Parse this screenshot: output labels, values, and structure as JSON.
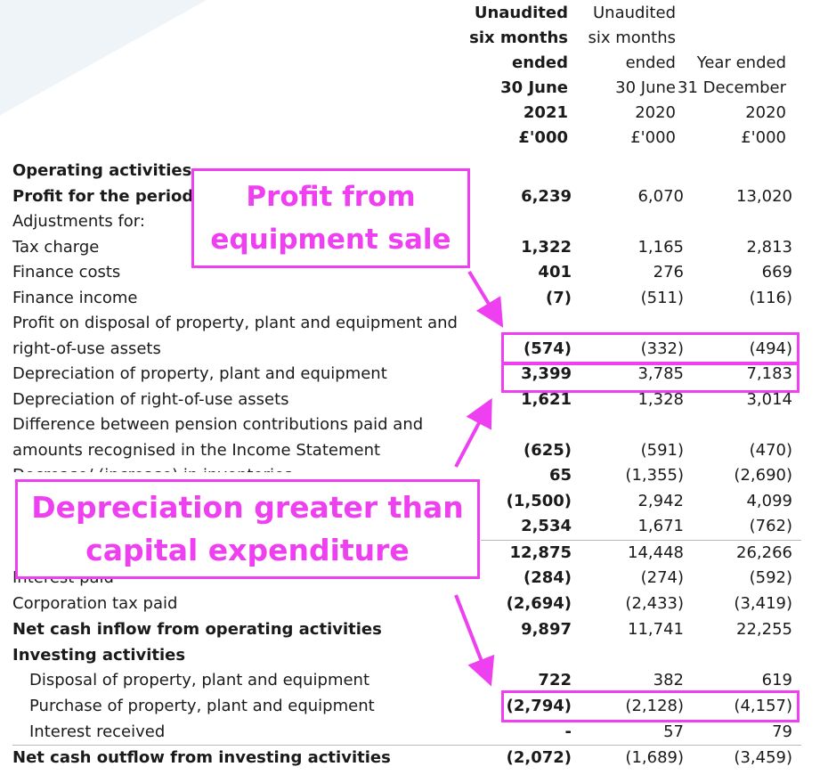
{
  "header": {
    "col1": [
      "Unaudited",
      "six months",
      "ended",
      "30 June",
      "2021",
      "£'000"
    ],
    "col2": [
      "Unaudited",
      "six months",
      "ended",
      "30 June",
      "2020",
      "£'000"
    ],
    "col3": [
      "Year ended",
      "31 December",
      "2020",
      "£'000"
    ]
  },
  "rows": [
    {
      "label": "Operating activities",
      "c1": "",
      "c2": "",
      "c3": ""
    },
    {
      "label": "Profit for the period",
      "c1": "6,239",
      "c2": "6,070",
      "c3": "13,020"
    },
    {
      "label": "Adjustments for:",
      "c1": "",
      "c2": "",
      "c3": ""
    },
    {
      "label": "Tax charge",
      "c1": "1,322",
      "c2": "1,165",
      "c3": "2,813"
    },
    {
      "label": "Finance costs",
      "c1": "401",
      "c2": "276",
      "c3": "669"
    },
    {
      "label": "Finance income",
      "c1": "(7)",
      "c2": "(511)",
      "c3": "(116)"
    },
    {
      "label": "Profit on disposal of property, plant and equipment and",
      "c1": "",
      "c2": "",
      "c3": ""
    },
    {
      "label": "right-of-use assets",
      "c1": "(574)",
      "c2": "(332)",
      "c3": "(494)"
    },
    {
      "label": "Depreciation of property, plant and equipment",
      "c1": "3,399",
      "c2": "3,785",
      "c3": "7,183"
    },
    {
      "label": "Depreciation of right-of-use assets",
      "c1": "1,621",
      "c2": "1,328",
      "c3": "3,014"
    },
    {
      "label": "Difference between pension contributions paid and",
      "c1": "",
      "c2": "",
      "c3": ""
    },
    {
      "label": "amounts recognised in the Income Statement",
      "c1": "(625)",
      "c2": "(591)",
      "c3": "(470)"
    },
    {
      "label": "Decrease/ (increase) in inventories",
      "c1": "65",
      "c2": "(1,355)",
      "c3": "(2,690)"
    },
    {
      "label": "",
      "c1": "(1,500)",
      "c2": "2,942",
      "c3": "4,099"
    },
    {
      "label": "",
      "c1": "2,534",
      "c2": "1,671",
      "c3": "(762)"
    },
    {
      "label": "",
      "c1": "12,875",
      "c2": "14,448",
      "c3": "26,266"
    },
    {
      "label": "Interest paid",
      "c1": "(284)",
      "c2": "(274)",
      "c3": "(592)"
    },
    {
      "label": "Corporation tax paid",
      "c1": "(2,694)",
      "c2": "(2,433)",
      "c3": "(3,419)"
    },
    {
      "label": "Net cash inflow from operating activities",
      "c1": "9,897",
      "c2": "11,741",
      "c3": "22,255"
    },
    {
      "label": "Investing activities",
      "c1": "",
      "c2": "",
      "c3": ""
    },
    {
      "label": "Disposal of property, plant and equipment",
      "c1": "722",
      "c2": "382",
      "c3": "619"
    },
    {
      "label": "Purchase of property, plant and equipment",
      "c1": "(2,794)",
      "c2": "(2,128)",
      "c3": "(4,157)"
    },
    {
      "label": "Interest received",
      "c1": "-",
      "c2": "57",
      "c3": "79"
    },
    {
      "label": "Net cash outflow from investing activities",
      "c1": "(2,072)",
      "c2": "(1,689)",
      "c3": "(3,459)"
    }
  ],
  "callouts": {
    "profit": [
      "Profit from",
      "equipment sale"
    ],
    "depreciation": [
      "Depreciation greater than",
      "capital expenditure"
    ]
  },
  "colors": {
    "accent": "#ee3ff0",
    "text": "#1a1a1a",
    "rule": "#b8b8b8"
  }
}
